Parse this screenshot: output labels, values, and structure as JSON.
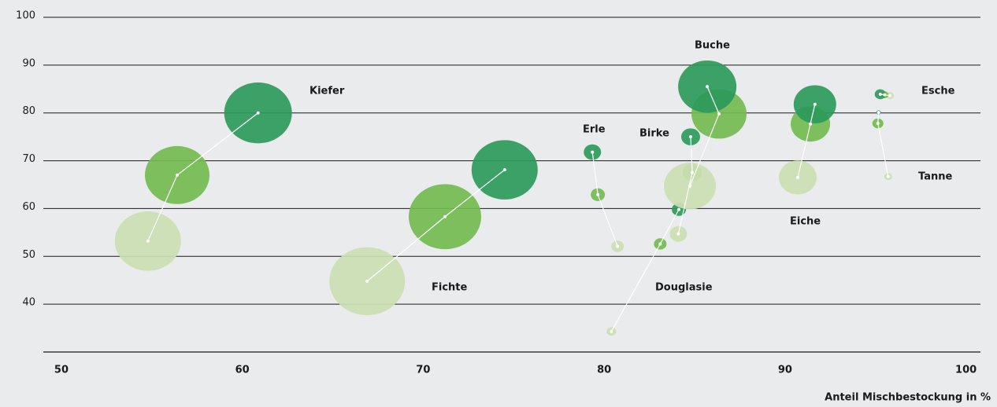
{
  "chart_data": {
    "type": "bubble",
    "x_label": "Anteil Mischbestockung in %",
    "xlim": [
      49,
      100.8
    ],
    "xticks": [
      50,
      60,
      70,
      80,
      90,
      100
    ],
    "ylim": [
      30,
      100
    ],
    "yticks": [
      40,
      50,
      60,
      70,
      80,
      90,
      100
    ],
    "grid": true,
    "point_colors": [
      "#cbdeb3",
      "#72bb4f",
      "#2b9a5b"
    ],
    "series": [
      {
        "name": "Kiefer",
        "x": [
          54.78,
          56.4,
          60.87
        ],
        "values": [
          53.2,
          67,
          80
        ],
        "sizes": [
          42,
          41,
          43
        ]
      },
      {
        "name": "Fichte",
        "x": [
          66.9,
          71.2,
          74.5
        ],
        "values": [
          44.8,
          58.3,
          68.1
        ],
        "sizes": [
          48,
          46,
          42
        ]
      },
      {
        "name": "Erle",
        "x": [
          80.74,
          79.65,
          79.35
        ],
        "values": [
          52.1,
          62.9,
          71.8
        ],
        "sizes": [
          8,
          9,
          11
        ]
      },
      {
        "name": "Douglasie",
        "x": [
          80.4,
          83.1,
          84.13
        ],
        "values": [
          34.3,
          52.6,
          59.8
        ],
        "sizes": [
          6,
          8,
          9
        ]
      },
      {
        "name": "Birke",
        "x": [
          84.1,
          84.87,
          84.78
        ],
        "values": [
          54.7,
          67.5,
          75
        ],
        "sizes": [
          11,
          12,
          12
        ]
      },
      {
        "name": "Buche",
        "x": [
          84.74,
          86.35,
          85.7
        ],
        "values": [
          64.7,
          79.8,
          85.5
        ],
        "sizes": [
          33,
          35,
          37
        ]
      },
      {
        "name": "Eiche",
        "x": [
          90.7,
          91.4,
          91.65
        ],
        "values": [
          66.5,
          77.7,
          81.8
        ],
        "sizes": [
          24,
          25,
          27
        ]
      },
      {
        "name": "Esche",
        "x": [
          95.7,
          95.13,
          95.17
        ],
        "values": [
          66.7,
          77.8,
          80.1
        ],
        "sizes": [
          5,
          7,
          3
        ]
      },
      {
        "name": "Tanne",
        "x": [
          95.8,
          95.5,
          95.26
        ],
        "values": [
          83.6,
          83.8,
          83.9
        ],
        "sizes": [
          5,
          5,
          7
        ]
      }
    ]
  }
}
